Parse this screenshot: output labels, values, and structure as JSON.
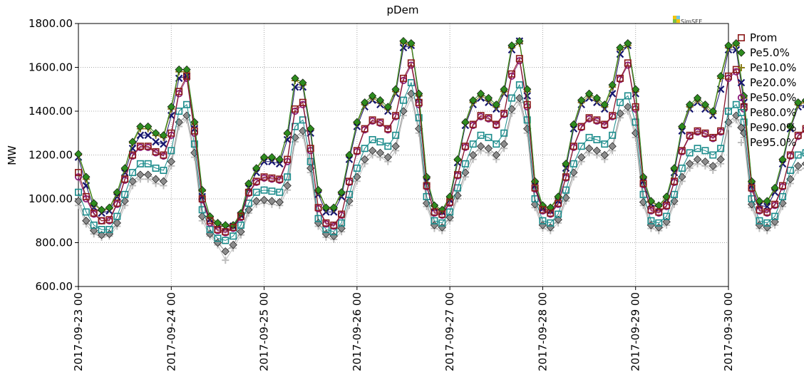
{
  "chart_data": {
    "type": "line",
    "title": "pDem",
    "xlabel": "",
    "ylabel": "MW",
    "ylim": [
      600,
      1800
    ],
    "yticks": [
      "600.00",
      "800.00",
      "1000.00",
      "1200.00",
      "1400.00",
      "1600.00",
      "1800.00"
    ],
    "xlim": [
      "2017-09-23 00",
      "2017-09-30 00"
    ],
    "xticks": [
      "2017-09-23 00",
      "2017-09-24 00",
      "2017-09-25 00",
      "2017-09-26 00",
      "2017-09-27 00",
      "2017-09-28 00",
      "2017-09-29 00",
      "2017-09-30 00"
    ],
    "grid": true,
    "legend_position": "right",
    "x_step_hours": 2,
    "logo_text": "SimSEE",
    "series": [
      {
        "name": "Prom",
        "marker": "square",
        "color": "#8b1a1a",
        "values": [
          1120,
          1010,
          935,
          900,
          905,
          980,
          1090,
          1200,
          1240,
          1240,
          1215,
          1200,
          1300,
          1490,
          1560,
          1310,
          1000,
          900,
          860,
          850,
          870,
          920,
          1030,
          1080,
          1100,
          1095,
          1090,
          1180,
          1410,
          1440,
          1230,
          960,
          890,
          880,
          930,
          1080,
          1220,
          1320,
          1360,
          1350,
          1320,
          1380,
          1550,
          1620,
          1440,
          1060,
          940,
          930,
          985,
          1110,
          1240,
          1340,
          1380,
          1370,
          1340,
          1390,
          1570,
          1640,
          1430,
          1050,
          950,
          935,
          980,
          1100,
          1240,
          1330,
          1370,
          1360,
          1340,
          1380,
          1550,
          1620,
          1420,
          1070,
          950,
          940,
          970,
          1080,
          1220,
          1290,
          1310,
          1300,
          1280,
          1310,
          1560,
          1590,
          1420,
          1050,
          950,
          940,
          975,
          1060,
          1200,
          1290,
          1320,
          1300,
          1280,
          1320,
          1570,
          1620,
          1430,
          1060,
          950,
          940,
          990,
          1100,
          1240,
          1300,
          1310,
          1290,
          1270,
          1310,
          1510,
          1540,
          1350
        ]
      },
      {
        "name": "Pe5.0%",
        "marker": "diamond",
        "color": "#2e8b1f",
        "values": [
          1205,
          1100,
          980,
          950,
          960,
          1030,
          1140,
          1260,
          1330,
          1330,
          1300,
          1290,
          1420,
          1590,
          1590,
          1350,
          1040,
          920,
          890,
          880,
          880,
          935,
          1070,
          1140,
          1190,
          1190,
          1180,
          1300,
          1550,
          1530,
          1320,
          1040,
          960,
          960,
          1030,
          1200,
          1350,
          1440,
          1470,
          1450,
          1420,
          1500,
          1720,
          1710,
          1480,
          1100,
          970,
          950,
          1010,
          1180,
          1350,
          1450,
          1480,
          1460,
          1430,
          1500,
          1700,
          1720,
          1500,
          1080,
          970,
          960,
          1010,
          1160,
          1340,
          1450,
          1480,
          1460,
          1430,
          1520,
          1690,
          1710,
          1500,
          1100,
          990,
          970,
          1010,
          1140,
          1330,
          1430,
          1460,
          1430,
          1400,
          1560,
          1700,
          1710,
          1470,
          1080,
          990,
          990,
          1050,
          1180,
          1330,
          1440,
          1450,
          1420,
          1400,
          1480,
          1660,
          1670,
          1440,
          1100,
          980,
          970,
          1010,
          1130,
          1310,
          1400,
          1400,
          1380,
          1360,
          1400,
          1600,
          1580,
          1430
        ]
      },
      {
        "name": "Pe10.0%",
        "marker": "plus",
        "color": "#8b7d1a",
        "values": [
          1200,
          1090,
          975,
          945,
          955,
          1025,
          1135,
          1255,
          1320,
          1320,
          1290,
          1280,
          1410,
          1580,
          1580,
          1340,
          1035,
          915,
          885,
          875,
          878,
          932,
          1065,
          1135,
          1185,
          1185,
          1175,
          1295,
          1540,
          1520,
          1315,
          1035,
          955,
          955,
          1025,
          1195,
          1345,
          1430,
          1460,
          1440,
          1410,
          1490,
          1710,
          1700,
          1470,
          1095,
          965,
          945,
          1005,
          1175,
          1345,
          1440,
          1470,
          1450,
          1420,
          1490,
          1690,
          1710,
          1490,
          1075,
          965,
          955,
          1005,
          1155,
          1335,
          1440,
          1470,
          1450,
          1420,
          1510,
          1680,
          1700,
          1490,
          1095,
          985,
          965,
          1005,
          1135,
          1325,
          1420,
          1450,
          1420,
          1390,
          1550,
          1690,
          1700,
          1460,
          1075,
          985,
          985,
          1045,
          1175,
          1325,
          1430,
          1440,
          1410,
          1390,
          1470,
          1650,
          1660,
          1430,
          1095,
          975,
          965,
          1005,
          1125,
          1305,
          1390,
          1390,
          1370,
          1350,
          1390,
          1590,
          1570,
          1420
        ]
      },
      {
        "name": "Pe20.0%",
        "marker": "cross",
        "color": "#14146e",
        "values": [
          1190,
          1060,
          960,
          935,
          945,
          1010,
          1120,
          1230,
          1290,
          1290,
          1260,
          1250,
          1380,
          1550,
          1560,
          1320,
          1010,
          905,
          880,
          870,
          875,
          925,
          1050,
          1120,
          1170,
          1170,
          1160,
          1270,
          1510,
          1510,
          1300,
          1020,
          940,
          940,
          1010,
          1180,
          1330,
          1420,
          1450,
          1430,
          1400,
          1480,
          1690,
          1700,
          1460,
          1080,
          960,
          940,
          995,
          1165,
          1335,
          1430,
          1460,
          1440,
          1410,
          1480,
          1680,
          1720,
          1470,
          1060,
          955,
          945,
          990,
          1140,
          1320,
          1430,
          1460,
          1440,
          1410,
          1480,
          1660,
          1700,
          1480,
          1080,
          975,
          960,
          995,
          1120,
          1310,
          1410,
          1440,
          1410,
          1380,
          1500,
          1680,
          1680,
          1440,
          1060,
          970,
          965,
          1030,
          1160,
          1320,
          1420,
          1430,
          1400,
          1380,
          1460,
          1620,
          1630,
          1410,
          1080,
          965,
          955,
          995,
          1115,
          1295,
          1380,
          1380,
          1360,
          1340,
          1380,
          1570,
          1560,
          1410
        ]
      },
      {
        "name": "Pe50.0%",
        "marker": "circle",
        "color": "#8b1a7a",
        "values": [
          1100,
          1000,
          930,
          900,
          900,
          975,
          1085,
          1195,
          1235,
          1235,
          1210,
          1195,
          1290,
          1480,
          1550,
          1300,
          995,
          890,
          855,
          845,
          865,
          915,
          1025,
          1075,
          1095,
          1090,
          1085,
          1170,
          1400,
          1430,
          1220,
          955,
          885,
          875,
          925,
          1075,
          1215,
          1315,
          1355,
          1345,
          1315,
          1375,
          1540,
          1610,
          1430,
          1055,
          935,
          925,
          980,
          1105,
          1235,
          1335,
          1375,
          1365,
          1335,
          1385,
          1560,
          1630,
          1420,
          1045,
          945,
          930,
          975,
          1095,
          1235,
          1325,
          1365,
          1355,
          1335,
          1375,
          1545,
          1610,
          1410,
          1065,
          945,
          935,
          965,
          1075,
          1215,
          1285,
          1305,
          1295,
          1275,
          1305,
          1550,
          1580,
          1410,
          1045,
          945,
          935,
          970,
          1055,
          1195,
          1285,
          1315,
          1295,
          1275,
          1315,
          1560,
          1610,
          1420,
          1055,
          945,
          935,
          985,
          1095,
          1235,
          1295,
          1305,
          1285,
          1265,
          1305,
          1500,
          1530,
          1340
        ]
      },
      {
        "name": "Pe80.0%",
        "marker": "square",
        "color": "#1a8b8b",
        "values": [
          1030,
          940,
          880,
          860,
          860,
          920,
          1020,
          1120,
          1160,
          1160,
          1140,
          1130,
          1220,
          1400,
          1430,
          1250,
          950,
          860,
          820,
          810,
          830,
          880,
          980,
          1030,
          1040,
          1035,
          1030,
          1100,
          1330,
          1360,
          1170,
          910,
          860,
          850,
          890,
          1020,
          1140,
          1230,
          1270,
          1260,
          1240,
          1290,
          1450,
          1530,
          1370,
          1010,
          900,
          890,
          940,
          1050,
          1160,
          1250,
          1290,
          1280,
          1250,
          1300,
          1460,
          1520,
          1360,
          1000,
          900,
          890,
          930,
          1040,
          1160,
          1240,
          1280,
          1270,
          1250,
          1290,
          1440,
          1470,
          1350,
          1020,
          900,
          890,
          920,
          1020,
          1140,
          1210,
          1230,
          1220,
          1200,
          1230,
          1400,
          1430,
          1350,
          1000,
          900,
          890,
          920,
          1010,
          1130,
          1200,
          1210,
          1200,
          1180,
          1220,
          1420,
          1440,
          1330,
          1000,
          890,
          880,
          920,
          1020,
          1140,
          1200,
          1210,
          1190,
          1170,
          1200,
          1390,
          1420,
          1200
        ]
      },
      {
        "name": "Pe90.0%",
        "marker": "diamond",
        "color": "#8c8c8c",
        "values": [
          990,
          900,
          855,
          835,
          840,
          890,
          990,
          1080,
          1110,
          1110,
          1090,
          1080,
          1170,
          1350,
          1380,
          1210,
          920,
          840,
          800,
          760,
          790,
          850,
          950,
          990,
          995,
          990,
          985,
          1060,
          1280,
          1310,
          1140,
          890,
          840,
          830,
          865,
          990,
          1100,
          1180,
          1220,
          1210,
          1190,
          1240,
          1400,
          1480,
          1320,
          980,
          880,
          870,
          915,
          1015,
          1120,
          1200,
          1240,
          1230,
          1200,
          1250,
          1410,
          1460,
          1320,
          975,
          880,
          870,
          905,
          1005,
          1120,
          1190,
          1230,
          1220,
          1200,
          1240,
          1390,
          1420,
          1300,
          985,
          880,
          870,
          895,
          990,
          1100,
          1160,
          1180,
          1170,
          1150,
          1180,
          1350,
          1380,
          1300,
          975,
          880,
          870,
          895,
          980,
          1090,
          1150,
          1160,
          1150,
          1130,
          1170,
          1370,
          1390,
          1280,
          975,
          870,
          860,
          895,
          990,
          1100,
          1150,
          1160,
          1140,
          1120,
          1150,
          1340,
          1370,
          1170
        ]
      },
      {
        "name": "Pe95.0%",
        "marker": "plus",
        "color": "#bdbdbd",
        "values": [
          970,
          885,
          840,
          825,
          830,
          875,
          970,
          1060,
          1090,
          1090,
          1070,
          1060,
          1150,
          1330,
          1360,
          1190,
          900,
          830,
          790,
          720,
          775,
          835,
          935,
          975,
          980,
          975,
          970,
          1040,
          1260,
          1290,
          1120,
          875,
          825,
          815,
          850,
          970,
          1080,
          1160,
          1200,
          1190,
          1170,
          1220,
          1380,
          1460,
          1300,
          965,
          865,
          855,
          900,
          1000,
          1100,
          1180,
          1220,
          1210,
          1180,
          1230,
          1390,
          1440,
          1300,
          960,
          865,
          855,
          890,
          990,
          1100,
          1170,
          1210,
          1200,
          1180,
          1220,
          1370,
          1400,
          1280,
          970,
          865,
          855,
          880,
          975,
          1080,
          1140,
          1160,
          1150,
          1130,
          1160,
          1330,
          1360,
          1280,
          960,
          865,
          855,
          880,
          965,
          1070,
          1130,
          1140,
          1130,
          1110,
          1150,
          1350,
          1370,
          1260,
          960,
          855,
          845,
          880,
          975,
          1080,
          1130,
          1140,
          1120,
          1100,
          1130,
          1320,
          1350,
          1150
        ]
      }
    ]
  }
}
